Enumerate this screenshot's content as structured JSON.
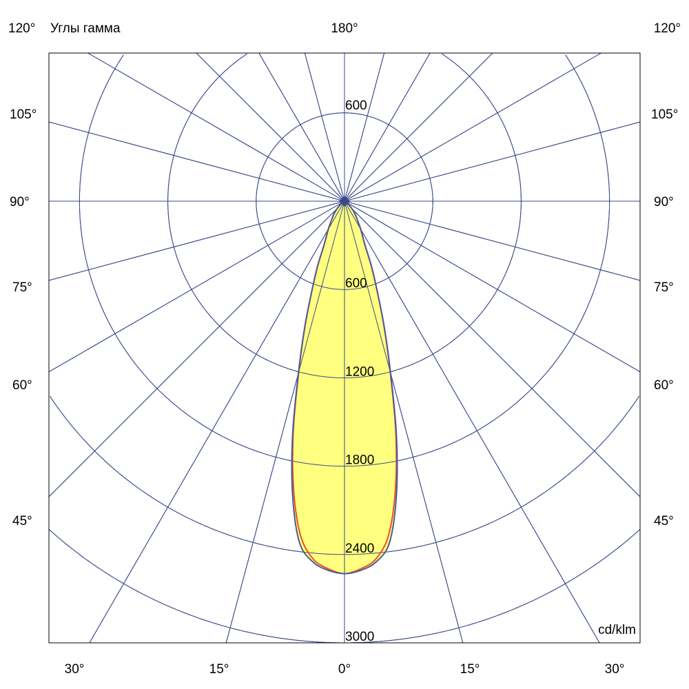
{
  "chart_data": {
    "type": "polar-line",
    "title": "Углы гамма",
    "unit_label": "cd/klm",
    "radial_ticks": [
      600,
      1200,
      1800,
      2400,
      3000
    ],
    "radial_tick_labels": [
      "600",
      "1200",
      "1800",
      "2400",
      "3000"
    ],
    "top_ring_label": "600",
    "angle_step_deg": 15,
    "angle_labels": {
      "top_left": "120°",
      "top_center": "180°",
      "top_right": "120°",
      "sides": [
        "105°",
        "90°",
        "75°",
        "60°",
        "45°"
      ],
      "bottom": [
        "30°",
        "15°",
        "0°",
        "15°",
        "30°"
      ]
    },
    "grid": true,
    "fill_color": "#ffff80",
    "series": [
      {
        "color": "#e8502a",
        "gamma": [
          0,
          2.5,
          5,
          7.5,
          10,
          12.5,
          15,
          17.5,
          20,
          22.5,
          25,
          30,
          35,
          40,
          45,
          60,
          75,
          90
        ],
        "intensity": [
          2530,
          2500,
          2440,
          2290,
          1990,
          1610,
          1200,
          895,
          645,
          475,
          330,
          220,
          150,
          110,
          70,
          20,
          5,
          0
        ]
      },
      {
        "color": "#4a5a9a",
        "gamma": [
          0,
          2.5,
          5,
          7.5,
          10,
          12.5,
          15,
          17.5,
          20,
          22.5,
          25,
          30,
          35,
          40,
          45,
          60,
          75,
          90
        ],
        "intensity": [
          2530,
          2510,
          2460,
          2340,
          2030,
          1630,
          1210,
          900,
          650,
          480,
          330,
          220,
          150,
          110,
          70,
          20,
          5,
          0
        ]
      }
    ]
  }
}
